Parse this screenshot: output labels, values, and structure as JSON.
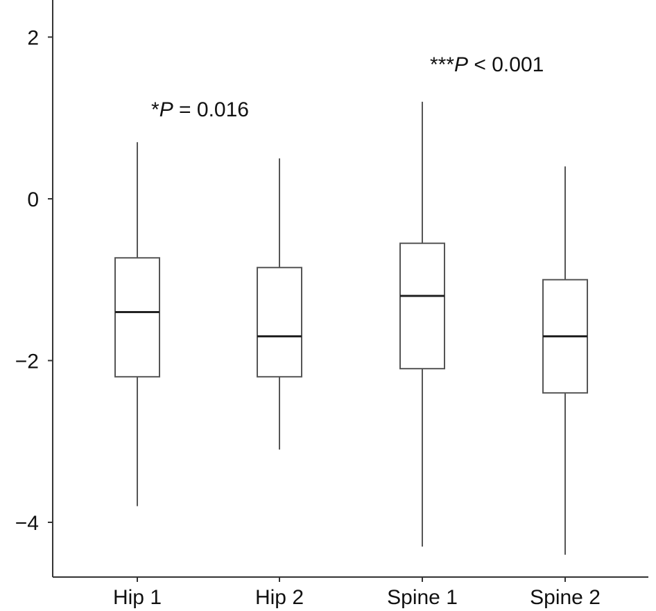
{
  "chart_data": {
    "type": "box",
    "categories": [
      "Hip 1",
      "Hip 2",
      "Spine 1",
      "Spine 2"
    ],
    "boxes": [
      {
        "category": "Hip 1",
        "min": -3.8,
        "q1": -2.2,
        "median": -1.4,
        "q3": -0.73,
        "max": 0.7
      },
      {
        "category": "Hip 2",
        "min": -3.1,
        "q1": -2.2,
        "median": -1.7,
        "q3": -0.85,
        "max": 0.5
      },
      {
        "category": "Spine 1",
        "min": -4.3,
        "q1": -2.1,
        "median": -1.2,
        "q3": -0.55,
        "max": 1.2
      },
      {
        "category": "Spine 2",
        "min": -4.4,
        "q1": -2.4,
        "median": -1.7,
        "q3": -1.0,
        "max": 0.4
      }
    ],
    "y_ticks": [
      2,
      0,
      -2,
      -4
    ],
    "y_tick_labels": [
      "2",
      "0",
      "−2",
      "−4"
    ],
    "ylim": [
      -4.8,
      2.5
    ],
    "grid": false,
    "title": "",
    "xlabel": "",
    "ylabel": "",
    "annotations": [
      {
        "prefix": "*",
        "italic": "P",
        "suffix": " = 0.016",
        "category": "Hip 1"
      },
      {
        "prefix": "***",
        "italic": "P",
        "suffix": " < 0.001",
        "category": "Spine 1"
      }
    ],
    "colors": {
      "box_stroke": "#555555",
      "median": "#222222",
      "axis": "#333333"
    }
  }
}
